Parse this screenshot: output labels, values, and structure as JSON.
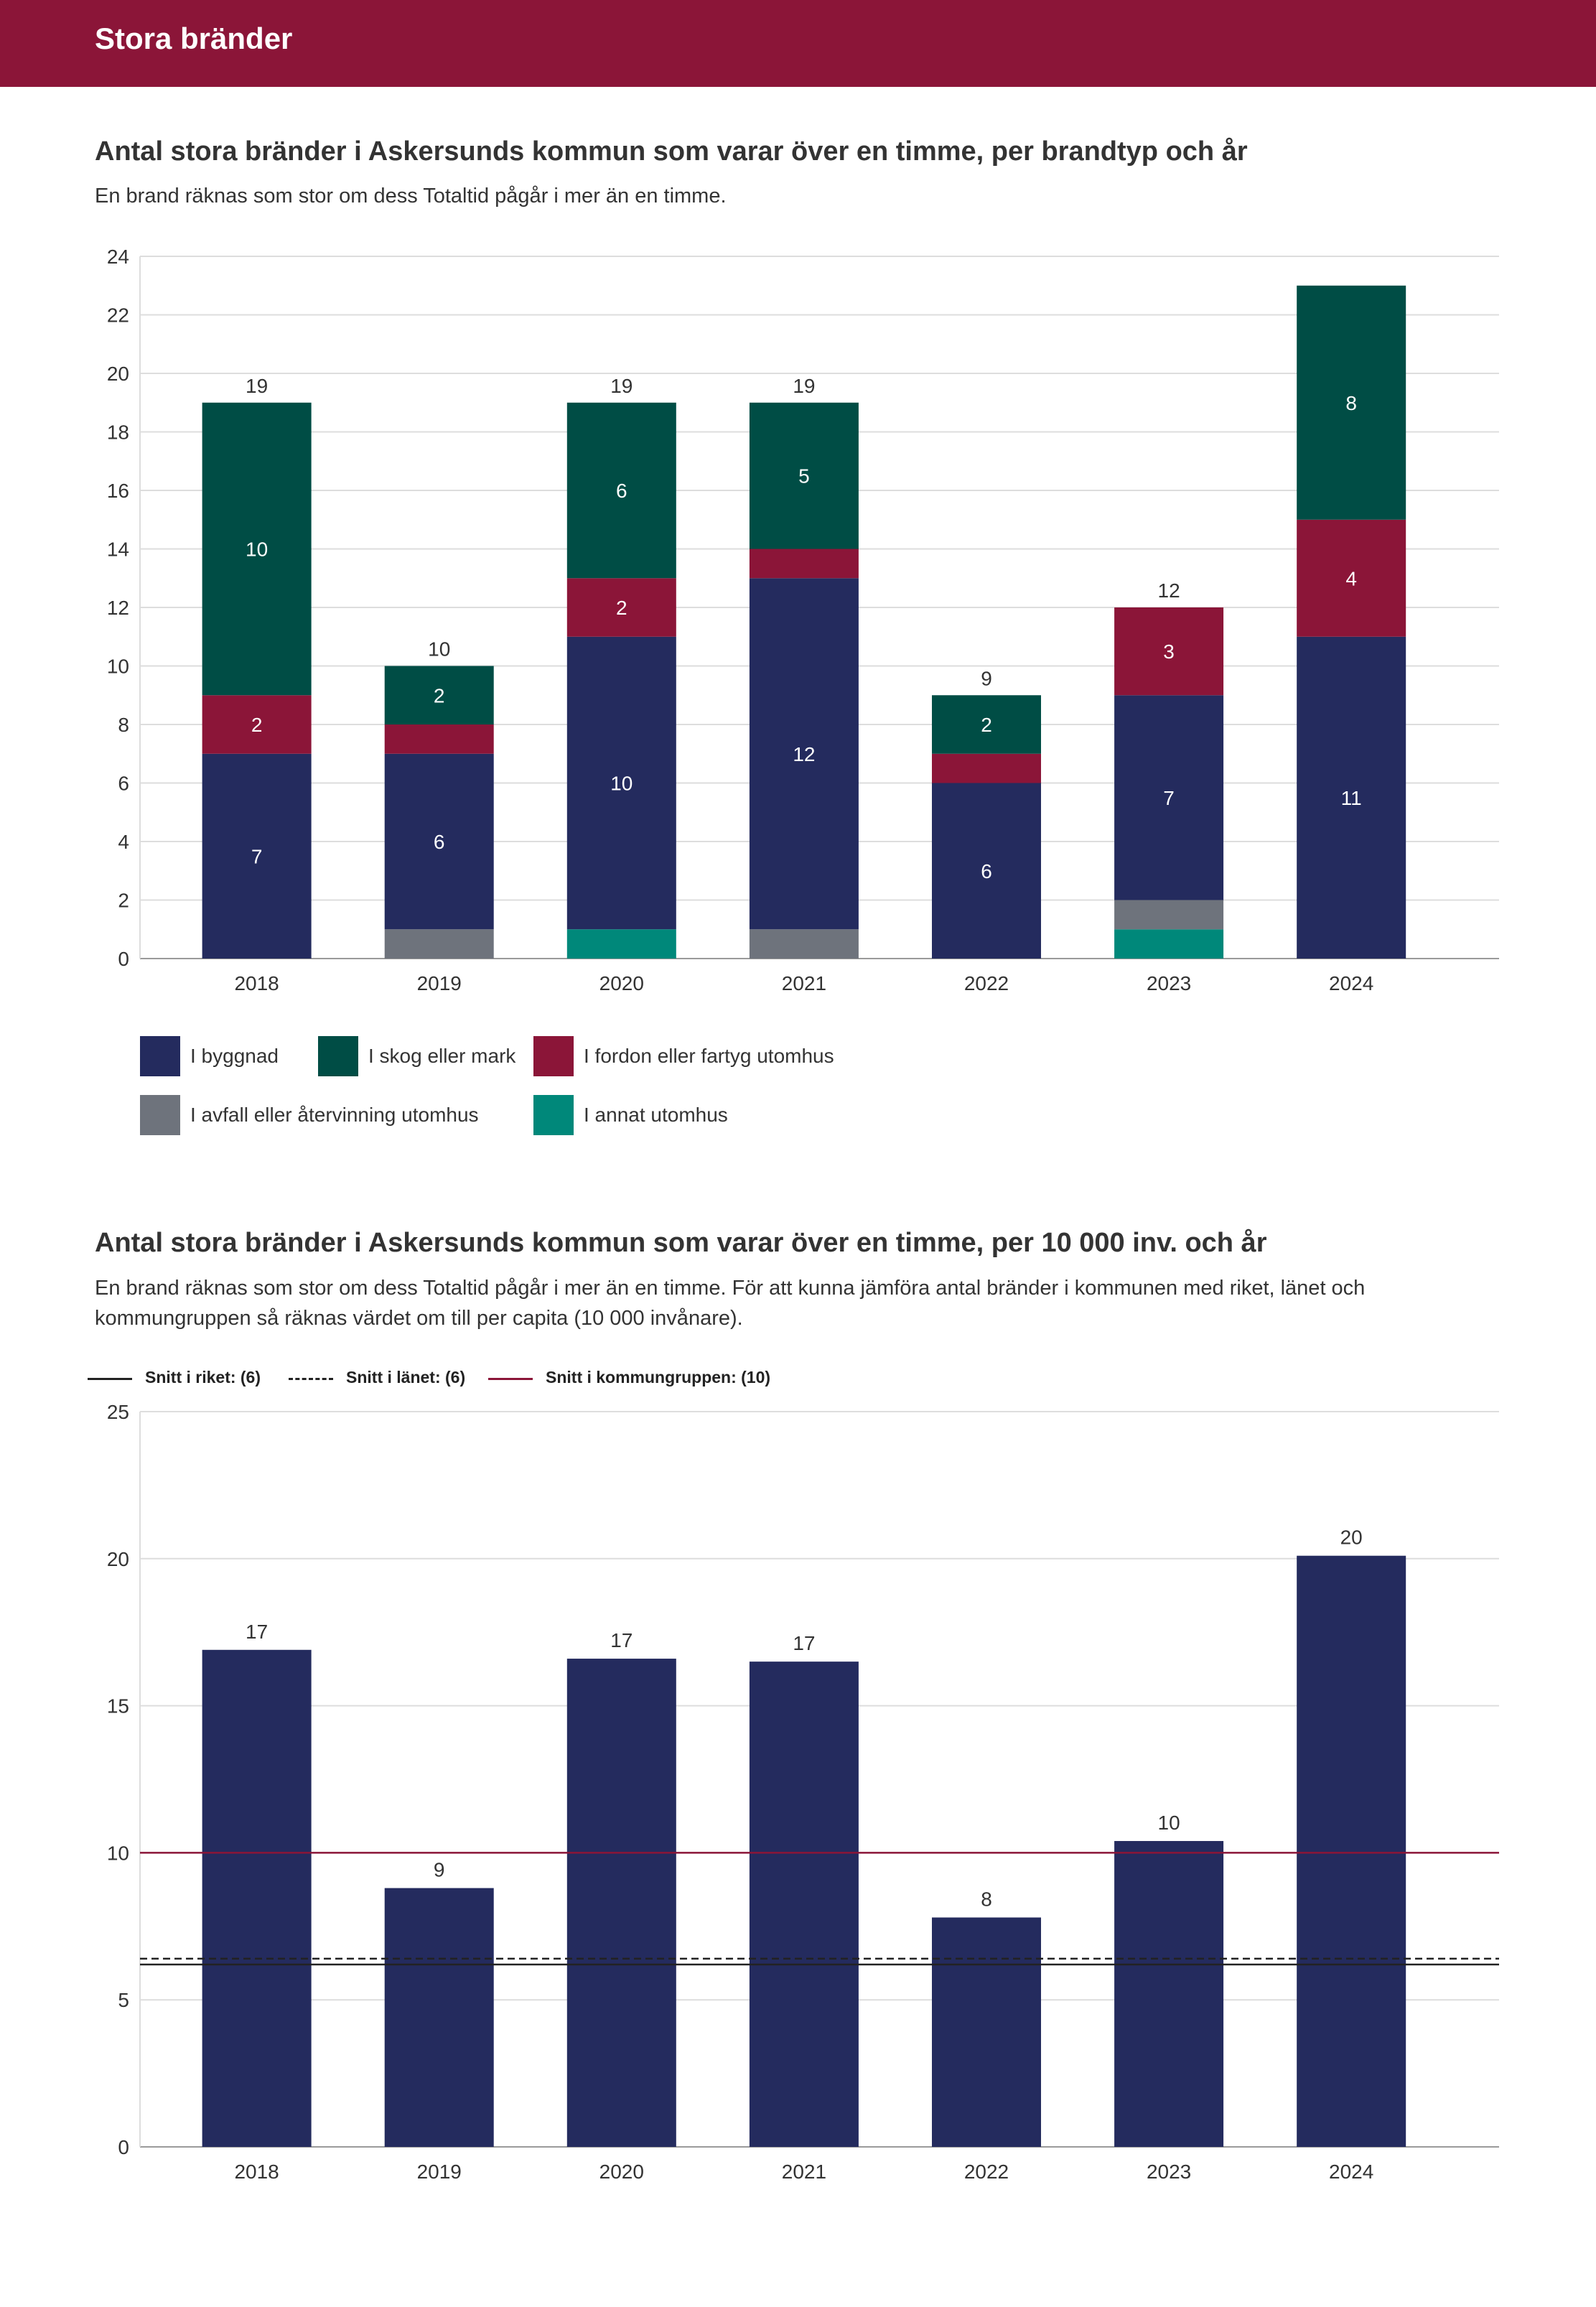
{
  "header": {
    "title": "Stora bränder"
  },
  "chart1": {
    "title": "Antal stora bränder i Askersunds kommun som varar över en timme, per brandtyp och år",
    "subtitle": "En brand räknas som stor om dess Totaltid pågår i mer än en timme."
  },
  "chart2": {
    "title": "Antal stora bränder i Askersunds kommun som varar över en timme, per 10 000 inv. och år",
    "subtitle_line1": "En brand räknas som stor om dess Totaltid pågår i mer än en timme. För att kunna jämföra antal bränder i kommunen med riket, länet och",
    "subtitle_line2": "kommungruppen så räknas värdet om till per capita (10 000 invånare)."
  },
  "chart_data": [
    {
      "type": "bar",
      "stacked": true,
      "title": "Antal stora bränder i Askersunds kommun som varar över en timme, per brandtyp och år",
      "categories": [
        "2018",
        "2019",
        "2020",
        "2021",
        "2022",
        "2023",
        "2024"
      ],
      "ylim": [
        0,
        24
      ],
      "yticks": [
        0,
        2,
        4,
        6,
        8,
        10,
        12,
        14,
        16,
        18,
        20,
        22,
        24
      ],
      "grid": true,
      "totals": [
        19,
        10,
        19,
        19,
        9,
        12,
        23
      ],
      "total_labels": [
        "19",
        "10",
        "19",
        "19",
        "9",
        "12",
        ""
      ],
      "series": [
        {
          "name": "I annat utomhus",
          "color": "#00887a",
          "values": [
            0,
            0,
            1,
            0,
            0,
            1,
            0
          ],
          "labels": [
            "",
            "",
            "",
            "",
            "",
            "",
            ""
          ]
        },
        {
          "name": "I avfall eller återvinning utomhus",
          "color": "#6e737c",
          "values": [
            0,
            1,
            0,
            1,
            0,
            1,
            0
          ],
          "labels": [
            "",
            "",
            "",
            "",
            "",
            "",
            ""
          ]
        },
        {
          "name": "I byggnad",
          "color": "#242b5e",
          "values": [
            7,
            6,
            10,
            12,
            6,
            7,
            11
          ],
          "labels": [
            "7",
            "6",
            "10",
            "12",
            "6",
            "7",
            "11"
          ]
        },
        {
          "name": "I fordon eller fartyg utomhus",
          "color": "#8b1538",
          "values": [
            2,
            1,
            2,
            1,
            1,
            3,
            4
          ],
          "labels": [
            "2",
            "",
            "2",
            "",
            "",
            "3",
            "4"
          ]
        },
        {
          "name": "I skog eller mark",
          "color": "#004d45",
          "values": [
            10,
            2,
            6,
            5,
            2,
            0,
            8
          ],
          "labels": [
            "10",
            "2",
            "6",
            "5",
            "2",
            "",
            "8"
          ]
        }
      ],
      "legend": [
        {
          "name": "I byggnad",
          "color": "#242b5e"
        },
        {
          "name": "I skog eller mark",
          "color": "#004d45"
        },
        {
          "name": "I fordon eller fartyg utomhus",
          "color": "#8b1538"
        },
        {
          "name": "I avfall eller återvinning utomhus",
          "color": "#6e737c"
        },
        {
          "name": "I annat utomhus",
          "color": "#00887a"
        }
      ]
    },
    {
      "type": "bar",
      "title": "Antal stora bränder i Askersunds kommun som varar över en timme, per 10 000 inv. och år",
      "categories": [
        "2018",
        "2019",
        "2020",
        "2021",
        "2022",
        "2023",
        "2024"
      ],
      "values": [
        16.9,
        8.8,
        16.6,
        16.5,
        7.8,
        10.4,
        20.1
      ],
      "labels": [
        "17",
        "9",
        "17",
        "17",
        "8",
        "10",
        "20"
      ],
      "color": "#242b5e",
      "ylim": [
        0,
        25
      ],
      "yticks": [
        0,
        5,
        10,
        15,
        20,
        25
      ],
      "grid": true,
      "reference_lines": [
        {
          "name": "Snitt i riket: (6)",
          "value": 6.2,
          "color": "#222222",
          "style": "solid"
        },
        {
          "name": "Snitt i länet: (6)",
          "value": 6.4,
          "color": "#222222",
          "style": "dashed"
        },
        {
          "name": "Snitt i kommungruppen: (10)",
          "value": 10.0,
          "color": "#8b1538",
          "style": "solid"
        }
      ]
    }
  ]
}
